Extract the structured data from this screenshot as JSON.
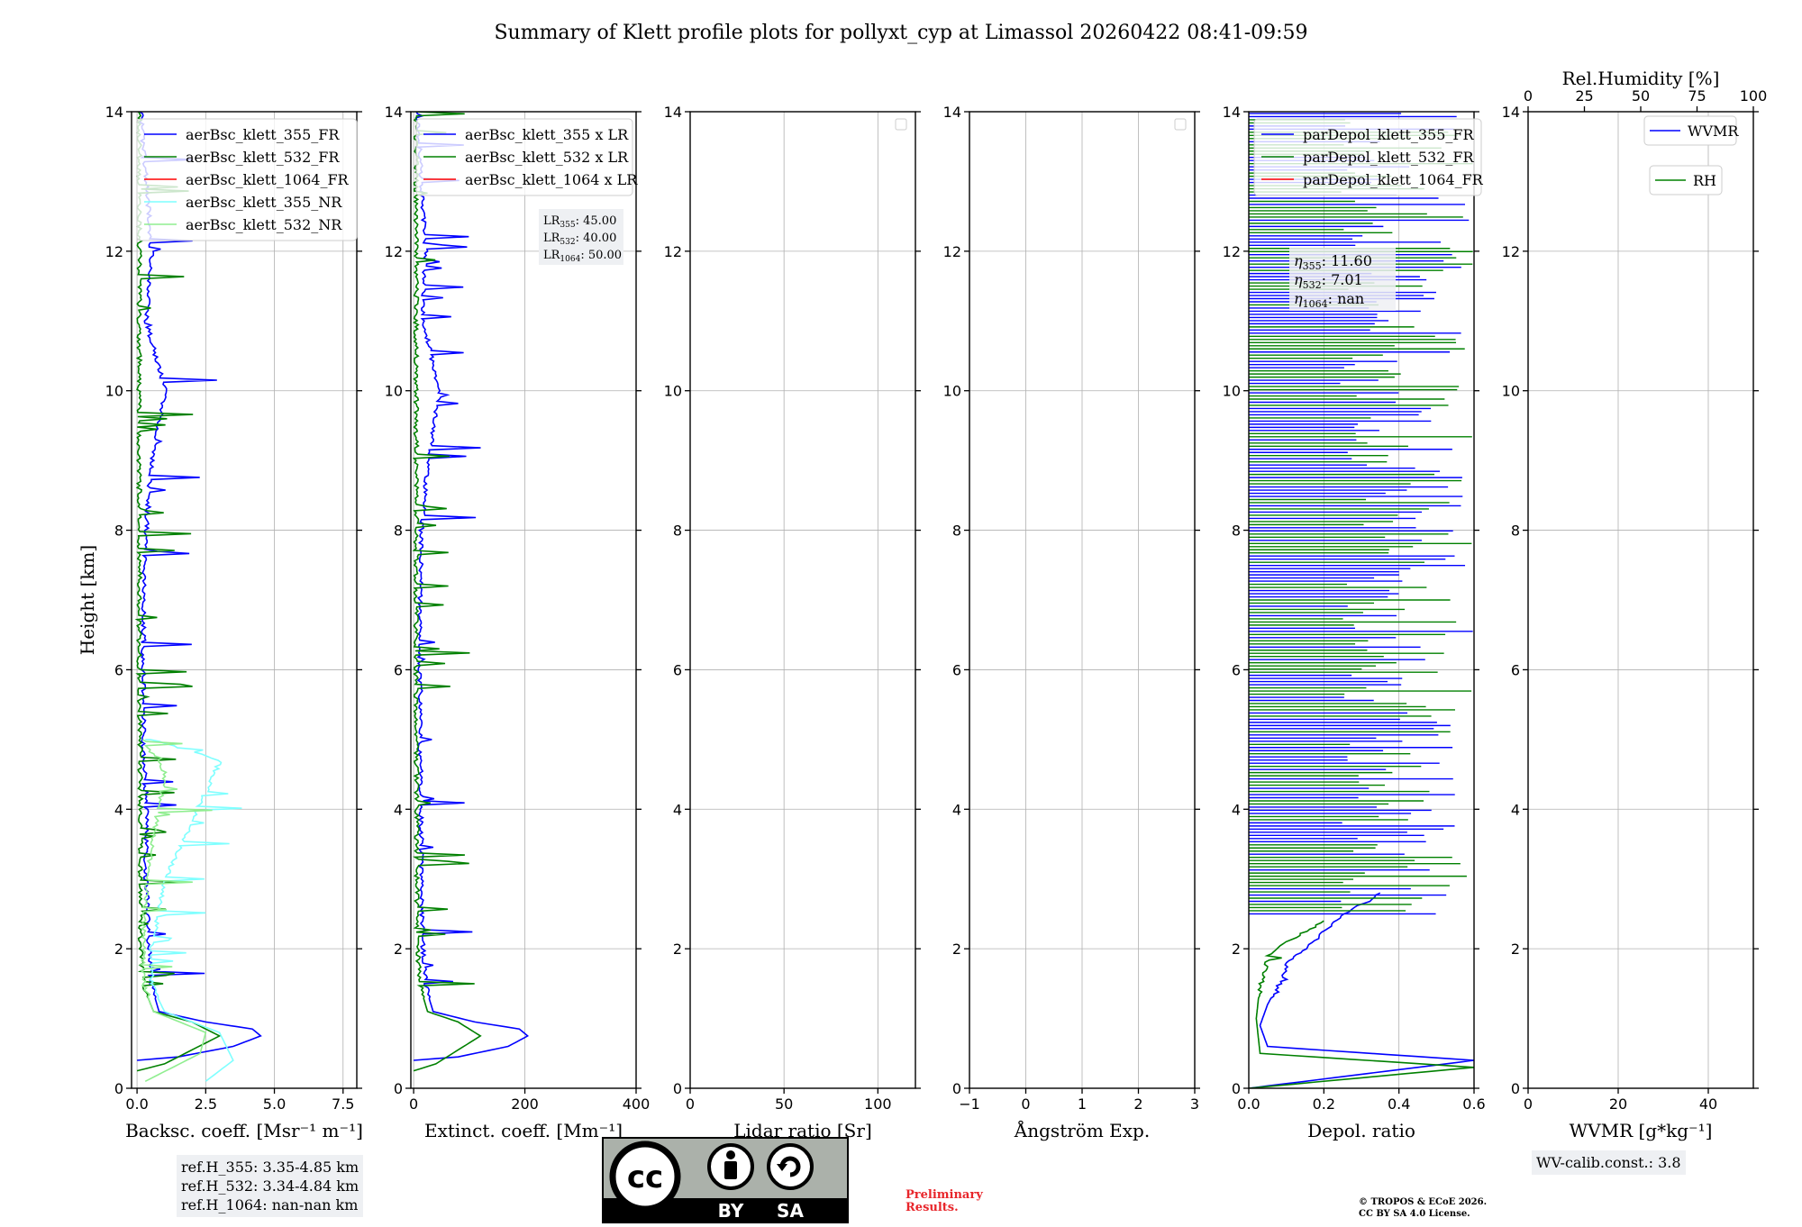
{
  "title": "Summary of Klett profile plots for pollyxt_cyp at Limassol 20260422 08:41-09:59",
  "colors": {
    "blue": "#0000ff",
    "green": "#008000",
    "red": "#ff0000",
    "cyan": "#7fffff",
    "lightgreen": "#90ee90",
    "grid": "#b0b0b0"
  },
  "chart_data": [
    {
      "type": "line",
      "title": "",
      "xlabel": "Backsc. coeff. [Msr⁻¹ m⁻¹]",
      "ylabel": "Height [km]",
      "xlim": [
        -0.2,
        8.0
      ],
      "ylim": [
        0,
        14
      ],
      "xticks": [
        0,
        2.5,
        5,
        7.5
      ],
      "xtick_labels": [
        "0.0",
        "2.5",
        "5.0",
        "7.5"
      ],
      "yticks": [
        0,
        2,
        4,
        6,
        8,
        10,
        12,
        14
      ],
      "ytick_labels": [
        "0",
        "2",
        "4",
        "6",
        "8",
        "10",
        "12",
        "14"
      ],
      "legend": [
        "aerBsc_klett_355_FR",
        "aerBsc_klett_532_FR",
        "aerBsc_klett_1064_FR",
        "aerBsc_klett_355_NR",
        "aerBsc_klett_532_NR"
      ],
      "legend_placement": "top-left",
      "series": [
        {
          "name": "aerBsc_klett_355_FR",
          "color": "blue",
          "x": [
            0.0,
            1.5,
            3.5,
            4.5,
            4.2,
            2.5,
            0.8,
            0.5,
            0.4,
            0.3,
            0.3,
            0.2,
            0.2,
            0.2,
            0.3,
            0.5,
            1.0,
            0.3,
            0.5,
            0.1
          ],
          "y": [
            0.4,
            0.45,
            0.6,
            0.75,
            0.85,
            0.95,
            1.1,
            1.5,
            2.0,
            3.0,
            4.0,
            5.0,
            6.0,
            7.0,
            8.0,
            9.0,
            10.0,
            11.0,
            12.0,
            14.0
          ]
        },
        {
          "name": "aerBsc_klett_532_FR",
          "color": "green",
          "x": [
            0.0,
            1.0,
            3.0,
            2.0,
            0.6,
            0.2,
            0.1,
            0.1,
            0.05,
            0.05,
            0.05
          ],
          "y": [
            0.25,
            0.35,
            0.75,
            0.95,
            1.1,
            1.5,
            2.0,
            4.0,
            6.0,
            9.0,
            14.0
          ]
        },
        {
          "name": "aerBsc_klett_1064_FR",
          "color": "red",
          "x": [],
          "y": []
        },
        {
          "name": "aerBsc_klett_355_NR",
          "color": "cyan",
          "x": [
            2.5,
            3.5,
            3.0,
            1.0,
            0.5,
            0.5,
            1.0,
            3.0,
            0.5,
            0.3
          ],
          "y": [
            0.1,
            0.4,
            0.8,
            1.1,
            1.5,
            2.0,
            3.0,
            4.7,
            5.0,
            5.0
          ]
        },
        {
          "name": "aerBsc_klett_532_NR",
          "color": "lightgreen",
          "x": [
            0.3,
            2.3,
            2.5,
            0.6,
            0.2,
            0.2,
            0.5,
            1.0,
            0.2
          ],
          "y": [
            0.1,
            0.5,
            0.8,
            1.1,
            1.5,
            2.5,
            3.5,
            4.5,
            5.0
          ]
        }
      ],
      "annotation": [
        "ref.H_355: 3.35-4.85 km",
        "ref.H_532: 3.34-4.84 km",
        "ref.H_1064: nan-nan km"
      ]
    },
    {
      "type": "line",
      "xlabel": "Extinct. coeff. [Mm⁻¹]",
      "xlim": [
        -5,
        400
      ],
      "ylim": [
        0,
        14
      ],
      "xticks": [
        0,
        200,
        400
      ],
      "xtick_labels": [
        "0",
        "200",
        "400"
      ],
      "legend": [
        "aerBsc_klett_355 x LR",
        "aerBsc_klett_532 x LR",
        "aerBsc_klett_1064 x LR"
      ],
      "legend_placement": "top-left",
      "series": [
        {
          "name": "aerBsc_klett_355 x LR",
          "color": "blue",
          "x": [
            0,
            80,
            170,
            205,
            190,
            110,
            35,
            20,
            15,
            12,
            12,
            10,
            10,
            10,
            12,
            25,
            45,
            15,
            20,
            5
          ],
          "y": [
            0.4,
            0.45,
            0.6,
            0.75,
            0.85,
            0.95,
            1.1,
            1.5,
            2.0,
            3.0,
            4.0,
            5.0,
            6.0,
            7.0,
            8.0,
            9.0,
            10.0,
            11.0,
            12.0,
            14.0
          ]
        },
        {
          "name": "aerBsc_klett_532 x LR",
          "color": "green",
          "x": [
            0,
            40,
            120,
            80,
            25,
            10,
            5,
            4,
            3,
            3,
            3
          ],
          "y": [
            0.25,
            0.35,
            0.75,
            0.95,
            1.1,
            1.5,
            2.0,
            4.0,
            6.0,
            9.0,
            14.0
          ]
        },
        {
          "name": "aerBsc_klett_1064 x LR",
          "color": "red",
          "x": [],
          "y": []
        }
      ],
      "lr_box": {
        "lr355": "45.00",
        "lr532": "40.00",
        "lr1064": "50.00"
      }
    },
    {
      "type": "line",
      "xlabel": "Lidar ratio [Sr]",
      "xlim": [
        0,
        120
      ],
      "ylim": [
        0,
        14
      ],
      "xticks": [
        0,
        50,
        100
      ],
      "xtick_labels": [
        "0",
        "50",
        "100"
      ],
      "series": []
    },
    {
      "type": "line",
      "xlabel": "Ångström Exp.",
      "xlim": [
        -1,
        3
      ],
      "ylim": [
        0,
        14
      ],
      "xticks": [
        -1,
        0,
        1,
        2,
        3
      ],
      "xtick_labels": [
        "−1",
        "0",
        "1",
        "2",
        "3"
      ],
      "series": []
    },
    {
      "type": "line",
      "xlabel": "Depol. ratio",
      "xlim": [
        0,
        0.6
      ],
      "ylim": [
        0,
        14
      ],
      "xticks": [
        0,
        0.2,
        0.4,
        0.6
      ],
      "xtick_labels": [
        "0.0",
        "0.2",
        "0.4",
        "0.6"
      ],
      "legend": [
        "parDepol_klett_355_FR",
        "parDepol_klett_532_FR",
        "parDepol_klett_1064_FR"
      ],
      "legend_placement": "top-left",
      "series": [
        {
          "name": "parDepol_klett_355_FR",
          "color": "blue",
          "x": [
            0.0,
            0.6,
            0.05,
            0.03,
            0.05,
            0.08,
            0.1,
            0.15,
            0.25,
            0.35
          ],
          "y": [
            0.0,
            0.4,
            0.6,
            0.9,
            1.2,
            1.5,
            1.8,
            2.0,
            2.5,
            2.8
          ]
        },
        {
          "name": "parDepol_klett_532_FR",
          "color": "green",
          "x": [
            0.0,
            0.6,
            0.03,
            0.02,
            0.03,
            0.05,
            0.1,
            0.2
          ],
          "y": [
            0.0,
            0.3,
            0.5,
            1.0,
            1.5,
            1.9,
            2.1,
            2.4
          ]
        },
        {
          "name": "parDepol_klett_1064_FR",
          "color": "red",
          "x": [],
          "y": []
        }
      ],
      "eta_box": {
        "eta355": "11.60",
        "eta532": "7.01",
        "eta1064": "nan"
      }
    },
    {
      "type": "line",
      "xlabel": "WVMR [g*kg⁻¹]",
      "top_xlabel": "Rel.Humidity [%]",
      "xlim": [
        0,
        50
      ],
      "ylim": [
        0,
        14
      ],
      "xticks": [
        0,
        20,
        40
      ],
      "xtick_labels": [
        "0",
        "20",
        "40"
      ],
      "top_xticks": [
        0,
        25,
        50,
        75,
        100
      ],
      "top_xtick_labels": [
        "0",
        "25",
        "50",
        "75",
        "100"
      ],
      "legend": [
        "WVMR",
        "RH"
      ],
      "series": [],
      "wv_calib": "WV-calib.const.: 3.8"
    }
  ],
  "logo": {
    "cc": "cc",
    "by": "BY",
    "sa": "SA"
  },
  "preliminary": [
    "Preliminary",
    "Results."
  ],
  "copyright": [
    "© TROPOS & ECoE 2026.",
    "CC BY SA 4.0 License."
  ]
}
